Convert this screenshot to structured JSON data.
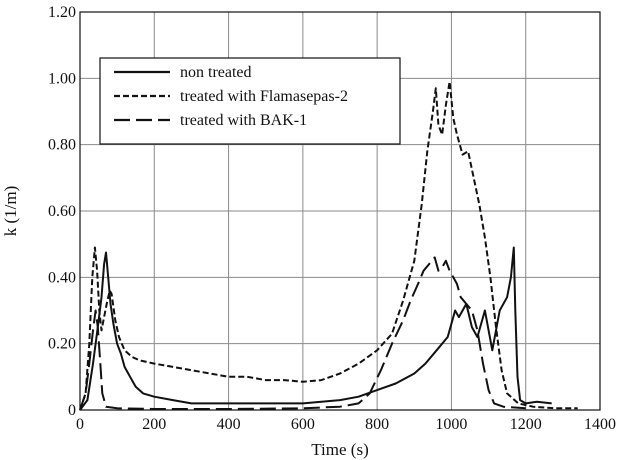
{
  "chart_data": {
    "type": "line",
    "xlabel": "Time (s)",
    "ylabel": "k (1/m)",
    "xlim": [
      0,
      1400
    ],
    "ylim": [
      0,
      1.2
    ],
    "x_ticks": [
      "0",
      "200",
      "400",
      "600",
      "800",
      "1000",
      "1200",
      "1400"
    ],
    "y_ticks": [
      "0",
      "0.20",
      "0.40",
      "0.60",
      "0.80",
      "1.00",
      "1.20"
    ],
    "grid": true,
    "legend_position": "top-left",
    "series": [
      {
        "name": "non treated",
        "style": "solid",
        "color": "#111111",
        "points": [
          [
            0,
            0
          ],
          [
            20,
            0.03
          ],
          [
            35,
            0.14
          ],
          [
            48,
            0.25
          ],
          [
            58,
            0.34
          ],
          [
            65,
            0.44
          ],
          [
            70,
            0.475
          ],
          [
            76,
            0.4
          ],
          [
            82,
            0.32
          ],
          [
            90,
            0.26
          ],
          [
            100,
            0.2
          ],
          [
            110,
            0.17
          ],
          [
            120,
            0.13
          ],
          [
            135,
            0.1
          ],
          [
            150,
            0.07
          ],
          [
            170,
            0.05
          ],
          [
            200,
            0.04
          ],
          [
            250,
            0.03
          ],
          [
            300,
            0.02
          ],
          [
            400,
            0.02
          ],
          [
            500,
            0.02
          ],
          [
            600,
            0.02
          ],
          [
            650,
            0.025
          ],
          [
            700,
            0.03
          ],
          [
            750,
            0.04
          ],
          [
            800,
            0.06
          ],
          [
            850,
            0.08
          ],
          [
            900,
            0.11
          ],
          [
            930,
            0.14
          ],
          [
            960,
            0.18
          ],
          [
            990,
            0.22
          ],
          [
            1000,
            0.26
          ],
          [
            1010,
            0.3
          ],
          [
            1020,
            0.28
          ],
          [
            1040,
            0.32
          ],
          [
            1055,
            0.25
          ],
          [
            1070,
            0.22
          ],
          [
            1090,
            0.3
          ],
          [
            1110,
            0.18
          ],
          [
            1130,
            0.3
          ],
          [
            1150,
            0.34
          ],
          [
            1160,
            0.4
          ],
          [
            1168,
            0.49
          ],
          [
            1172,
            0.3
          ],
          [
            1178,
            0.1
          ],
          [
            1185,
            0.03
          ],
          [
            1200,
            0.02
          ],
          [
            1230,
            0.025
          ],
          [
            1270,
            0.02
          ]
        ]
      },
      {
        "name": "treated with Flamasepas-2",
        "style": "dashed",
        "color": "#111111",
        "points": [
          [
            0,
            0
          ],
          [
            15,
            0.05
          ],
          [
            25,
            0.2
          ],
          [
            33,
            0.4
          ],
          [
            40,
            0.49
          ],
          [
            46,
            0.42
          ],
          [
            52,
            0.3
          ],
          [
            58,
            0.24
          ],
          [
            65,
            0.28
          ],
          [
            72,
            0.32
          ],
          [
            80,
            0.36
          ],
          [
            85,
            0.35
          ],
          [
            95,
            0.27
          ],
          [
            105,
            0.22
          ],
          [
            120,
            0.18
          ],
          [
            140,
            0.16
          ],
          [
            160,
            0.15
          ],
          [
            200,
            0.14
          ],
          [
            250,
            0.13
          ],
          [
            300,
            0.12
          ],
          [
            350,
            0.11
          ],
          [
            400,
            0.1
          ],
          [
            450,
            0.1
          ],
          [
            500,
            0.09
          ],
          [
            550,
            0.09
          ],
          [
            600,
            0.085
          ],
          [
            650,
            0.09
          ],
          [
            700,
            0.11
          ],
          [
            750,
            0.14
          ],
          [
            800,
            0.18
          ],
          [
            840,
            0.23
          ],
          [
            870,
            0.33
          ],
          [
            900,
            0.45
          ],
          [
            920,
            0.62
          ],
          [
            935,
            0.78
          ],
          [
            950,
            0.9
          ],
          [
            958,
            0.97
          ],
          [
            965,
            0.86
          ],
          [
            975,
            0.83
          ],
          [
            985,
            0.92
          ],
          [
            995,
            0.99
          ],
          [
            1005,
            0.88
          ],
          [
            1015,
            0.83
          ],
          [
            1030,
            0.77
          ],
          [
            1045,
            0.78
          ],
          [
            1060,
            0.7
          ],
          [
            1075,
            0.62
          ],
          [
            1090,
            0.52
          ],
          [
            1105,
            0.4
          ],
          [
            1120,
            0.25
          ],
          [
            1135,
            0.12
          ],
          [
            1150,
            0.05
          ],
          [
            1180,
            0.02
          ],
          [
            1220,
            0.01
          ],
          [
            1280,
            0.005
          ],
          [
            1340,
            0.005
          ]
        ]
      },
      {
        "name": "treated with BAK-1",
        "style": "longdash",
        "color": "#111111",
        "points": [
          [
            0,
            0
          ],
          [
            15,
            0.05
          ],
          [
            25,
            0.14
          ],
          [
            35,
            0.24
          ],
          [
            42,
            0.3
          ],
          [
            48,
            0.25
          ],
          [
            54,
            0.15
          ],
          [
            60,
            0.05
          ],
          [
            70,
            0.01
          ],
          [
            100,
            0.005
          ],
          [
            200,
            0.003
          ],
          [
            400,
            0.003
          ],
          [
            600,
            0.005
          ],
          [
            700,
            0.01
          ],
          [
            750,
            0.02
          ],
          [
            780,
            0.05
          ],
          [
            810,
            0.12
          ],
          [
            840,
            0.2
          ],
          [
            870,
            0.27
          ],
          [
            890,
            0.33
          ],
          [
            910,
            0.38
          ],
          [
            925,
            0.42
          ],
          [
            940,
            0.44
          ],
          [
            955,
            0.46
          ],
          [
            965,
            0.42
          ],
          [
            975,
            0.43
          ],
          [
            985,
            0.45
          ],
          [
            995,
            0.42
          ],
          [
            1005,
            0.4
          ],
          [
            1015,
            0.38
          ],
          [
            1025,
            0.34
          ],
          [
            1040,
            0.32
          ],
          [
            1055,
            0.3
          ],
          [
            1070,
            0.24
          ],
          [
            1085,
            0.14
          ],
          [
            1100,
            0.06
          ],
          [
            1115,
            0.02
          ],
          [
            1140,
            0.01
          ],
          [
            1200,
            0.005
          ]
        ]
      }
    ]
  }
}
